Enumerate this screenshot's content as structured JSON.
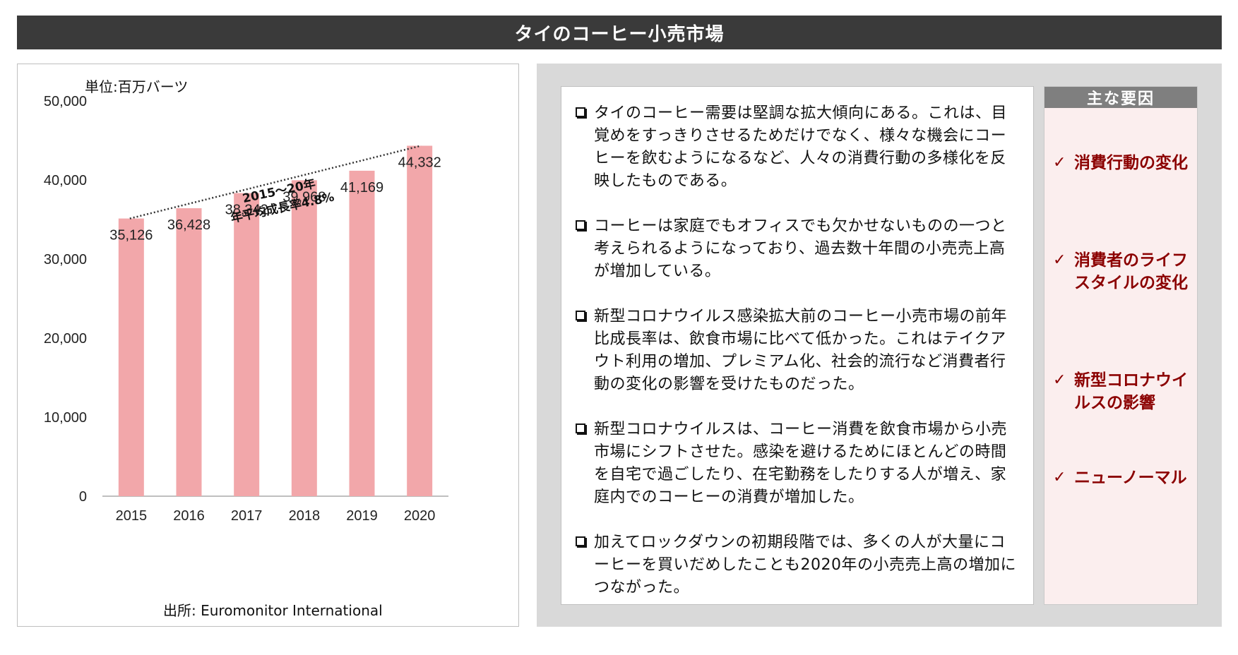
{
  "title": "タイのコーヒー小売市場",
  "chart_data": {
    "type": "bar",
    "categories": [
      "2015",
      "2016",
      "2017",
      "2018",
      "2019",
      "2020"
    ],
    "values": [
      35126,
      36428,
      38342,
      39968,
      41169,
      44332
    ],
    "value_labels": [
      "35,126",
      "36,428",
      "38,342",
      "39,968",
      "41,169",
      "44,332"
    ],
    "ylim": [
      0,
      50000
    ],
    "yticks": [
      0,
      10000,
      20000,
      30000,
      40000,
      50000
    ],
    "ytick_labels": [
      "0",
      "10,000",
      "20,000",
      "30,000",
      "40,000",
      "50,000"
    ],
    "unit": "単位:百万バーツ",
    "annotation": "2015～20年\n年平均成長率4.8%",
    "source": "出所: Euromonitor International",
    "bar_color": "#f2a7aa",
    "trendline": "dotted"
  },
  "bullets": [
    "タイのコーヒー需要は堅調な拡大傾向にある。これは、目覚めをすっきりさせるためだけでなく、様々な機会にコーヒーを飲むようになるなど、人々の消費行動の多様化を反映したものである。",
    "コーヒーは家庭でもオフィスでも欠かせないものの一つと考えられるようになっており、過去数十年間の小売売上高が増加している。",
    "新型コロナウイルス感染拡大前のコーヒー小売市場の前年比成長率は、飲食市場に比べて低かった。これはテイクアウト利用の増加、プレミアム化、社会的流行など消費者行動の変化の影響を受けたものだった。",
    "新型コロナウイルスは、コーヒー消費を飲食市場から小売市場にシフトさせた。感染を避けるためにほとんどの時間を自宅で過ごしたり、在宅勤務をしたりする人が増え、家庭内でのコーヒーの消費が増加した。",
    "加えてロックダウンの初期段階では、多くの人が大量にコーヒーを買いだめしたことも2020年の小売売上高の増加につながった。"
  ],
  "factors": {
    "header": "主な要因",
    "items": [
      "消費行動の変化",
      "消費者のライフスタイルの変化",
      "新型コロナウイルスの影響",
      "ニューノーマル"
    ]
  },
  "colors": {
    "title_bg": "#3a3a3a",
    "panel_bg": "#d9d9d9",
    "factor_text": "#8b0000",
    "factor_bg": "#fbeeee"
  }
}
